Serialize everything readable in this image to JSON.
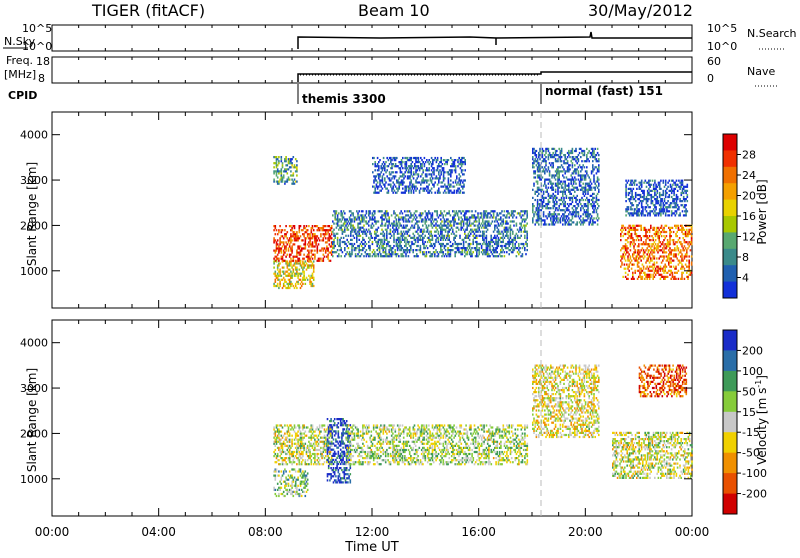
{
  "header": {
    "title": "TIGER (fitACF)",
    "beam": "Beam 10",
    "date": "30/May/2012"
  },
  "strip_nsky": {
    "left_label": "N.Sky",
    "right_label": "N.Search",
    "left_ticks": [
      "10^5",
      "10^0"
    ],
    "right_ticks": [
      "10^5",
      "10^0"
    ]
  },
  "strip_freq": {
    "left_label_1": "Freq.",
    "left_label_2": "[MHz]",
    "right_label": "Nave",
    "left_ticks": [
      "18",
      "8"
    ],
    "right_ticks": [
      "60",
      "0"
    ]
  },
  "cpid": {
    "label": "CPID",
    "modes": [
      {
        "name": "themis 3300",
        "start": 8.25
      },
      {
        "name": "normal (fast) 151",
        "start": 18.0
      }
    ]
  },
  "chart_data": [
    {
      "type": "heatmap",
      "name": "power",
      "ylabel": "Slant Range [km]",
      "xlabel": "Time UT",
      "xlim": [
        0,
        24
      ],
      "ylim": [
        180,
        4500
      ],
      "yticks": [
        1000,
        2000,
        3000,
        4000
      ],
      "colorbar": {
        "label": "Power [dB]",
        "ticks": [
          "28",
          "24",
          "20",
          "16",
          "12",
          "8",
          "4"
        ],
        "colors": [
          "#dd0000",
          "#f03000",
          "#f07000",
          "#f4a000",
          "#e8d200",
          "#a8c800",
          "#58a870",
          "#3a8a8a",
          "#2060b0",
          "#1230d8"
        ]
      },
      "regions": [
        {
          "t0": 8.3,
          "t1": 10.5,
          "r0": 1200,
          "r1": 2000,
          "level": 0.85
        },
        {
          "t0": 8.3,
          "t1": 9.8,
          "r0": 600,
          "r1": 1200,
          "level": 0.55
        },
        {
          "t0": 8.3,
          "t1": 9.2,
          "r0": 2900,
          "r1": 3500,
          "level": 0.3
        },
        {
          "t0": 10.5,
          "t1": 17.8,
          "r0": 1300,
          "r1": 2300,
          "level": 0.2
        },
        {
          "t0": 12.0,
          "t1": 15.5,
          "r0": 2700,
          "r1": 3500,
          "level": 0.12
        },
        {
          "t0": 18.0,
          "t1": 20.5,
          "r0": 2000,
          "r1": 3700,
          "level": 0.15
        },
        {
          "t0": 21.3,
          "t1": 24.0,
          "r0": 800,
          "r1": 2000,
          "level": 0.75
        },
        {
          "t0": 21.5,
          "t1": 23.8,
          "r0": 2200,
          "r1": 3000,
          "level": 0.1
        }
      ]
    },
    {
      "type": "heatmap",
      "name": "velocity",
      "ylabel": "Slant Range [km]",
      "xlabel": "Time UT",
      "xlim": [
        0,
        24
      ],
      "ylim": [
        180,
        4500
      ],
      "yticks": [
        1000,
        2000,
        3000,
        4000
      ],
      "colorbar": {
        "label": "Velocity [m s^-1]",
        "ticks": [
          "200",
          "100",
          "50",
          "15",
          "-15",
          "-50",
          "-100",
          "-200"
        ],
        "colors": [
          "#1a2cc8",
          "#2a6ea8",
          "#3e9a58",
          "#86cc3a",
          "#c8c8c8",
          "#f0d000",
          "#f09000",
          "#e85000",
          "#d00000"
        ]
      },
      "regions": [
        {
          "t0": 8.3,
          "t1": 10.5,
          "r0": 1300,
          "r1": 2200,
          "level": 0.5
        },
        {
          "t0": 8.3,
          "t1": 9.6,
          "r0": 600,
          "r1": 1200,
          "level": 0.4
        },
        {
          "t0": 10.3,
          "t1": 11.2,
          "r0": 900,
          "r1": 2300,
          "level": 0.05
        },
        {
          "t0": 11.0,
          "t1": 17.8,
          "r0": 1300,
          "r1": 2200,
          "level": 0.45
        },
        {
          "t0": 18.0,
          "t1": 20.5,
          "r0": 1900,
          "r1": 3500,
          "level": 0.55
        },
        {
          "t0": 21.0,
          "t1": 24.0,
          "r0": 1000,
          "r1": 2000,
          "level": 0.5
        },
        {
          "t0": 22.0,
          "t1": 23.8,
          "r0": 2800,
          "r1": 3500,
          "level": 0.85
        }
      ]
    }
  ],
  "x_axis": {
    "label": "Time UT",
    "ticks": [
      "00:00",
      "04:00",
      "08:00",
      "12:00",
      "16:00",
      "20:00",
      "00:00"
    ]
  }
}
